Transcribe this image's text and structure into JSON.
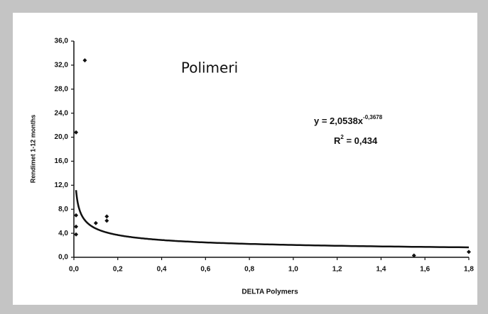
{
  "chart_data": {
    "type": "scatter",
    "title": "Polimeri",
    "x_label": "DELTA Polymers",
    "y_label": "Rendimet 1-12 months",
    "color": "#111111",
    "series": [
      {
        "name": "Polimeri",
        "x": [
          0.01,
          0.01,
          0.01,
          0.01,
          0.05,
          0.1,
          0.15,
          0.15,
          1.55,
          1.8
        ],
        "values": [
          3.8,
          5.1,
          7.0,
          20.8,
          32.8,
          5.7,
          6.1,
          6.8,
          0.3,
          0.9
        ]
      }
    ],
    "trendline": {
      "type": "power",
      "coefficient": 2.0538,
      "exponent": -0.3678
    },
    "equation": {
      "base": "y = 2,0538x",
      "exponent": "-0,3678"
    },
    "r_squared": {
      "base": "R",
      "exponent": "2",
      "rest": " = 0,434"
    },
    "xlim": [
      0,
      1.8
    ],
    "ylim": [
      0,
      36
    ],
    "xticks": [
      {
        "value": 0,
        "label": "0,0"
      },
      {
        "value": 0.2,
        "label": "0,2"
      },
      {
        "value": 0.4,
        "label": "0,4"
      },
      {
        "value": 0.6,
        "label": "0,6"
      },
      {
        "value": 0.8,
        "label": "0,8"
      },
      {
        "value": 1.0,
        "label": "1,0"
      },
      {
        "value": 1.2,
        "label": "1,2"
      },
      {
        "value": 1.4,
        "label": "1,4"
      },
      {
        "value": 1.6,
        "label": "1,6"
      },
      {
        "value": 1.8,
        "label": "1,8"
      }
    ],
    "yticks": [
      {
        "value": 0,
        "label": "0,0"
      },
      {
        "value": 4,
        "label": "4,0"
      },
      {
        "value": 8,
        "label": "8,0"
      },
      {
        "value": 12,
        "label": "12,0"
      },
      {
        "value": 16,
        "label": "16,0"
      },
      {
        "value": 20,
        "label": "20,0"
      },
      {
        "value": 24,
        "label": "24,0"
      },
      {
        "value": 28,
        "label": "28,0"
      },
      {
        "value": 32,
        "label": "32,0"
      },
      {
        "value": 36,
        "label": "36,0"
      }
    ],
    "grid": false
  }
}
